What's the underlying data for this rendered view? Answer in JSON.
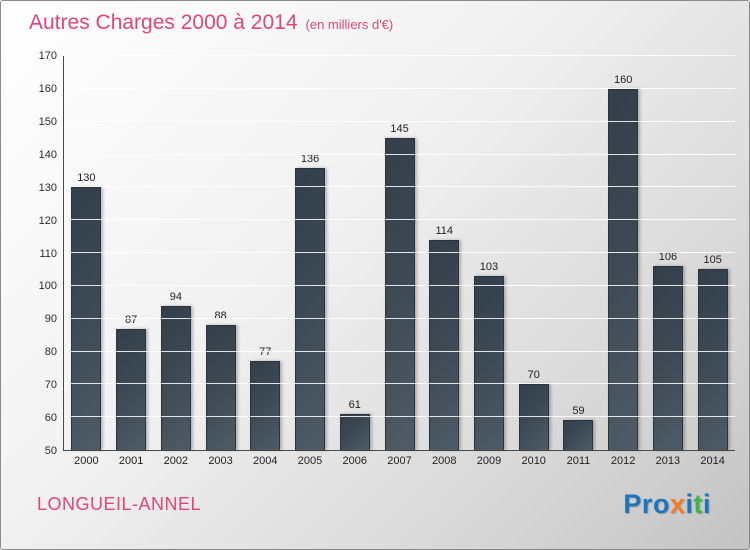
{
  "header": {
    "title": "Autres Charges 2000 à 2014",
    "subtitle": "(en milliers d'€)"
  },
  "footer": {
    "city": "LONGUEIL-ANNEL",
    "logo_letters": [
      {
        "ch": "P",
        "color": "#1b75bc"
      },
      {
        "ch": "r",
        "color": "#1b75bc"
      },
      {
        "ch": "o",
        "color": "#1b75bc"
      },
      {
        "ch": "x",
        "color": "#f47b20"
      },
      {
        "ch": "i",
        "color": "#1b75bc"
      },
      {
        "ch": "t",
        "color": "#3ab54a"
      },
      {
        "ch": "i",
        "color": "#1b75bc"
      }
    ]
  },
  "chart_data": {
    "type": "bar",
    "title": "Autres Charges 2000 à 2014",
    "subtitle": "(en milliers d'€)",
    "categories": [
      "2000",
      "2001",
      "2002",
      "2003",
      "2004",
      "2005",
      "2006",
      "2007",
      "2008",
      "2009",
      "2010",
      "2011",
      "2012",
      "2013",
      "2014"
    ],
    "values": [
      130,
      87,
      94,
      88,
      77,
      136,
      61,
      145,
      114,
      103,
      70,
      59,
      160,
      106,
      105
    ],
    "xlabel": "",
    "ylabel": "",
    "ylim": [
      50,
      170
    ],
    "ytick_step": 10,
    "grid": true,
    "legend": "none",
    "bar_color": "#3c4955",
    "accent_color": "#e0457b"
  }
}
